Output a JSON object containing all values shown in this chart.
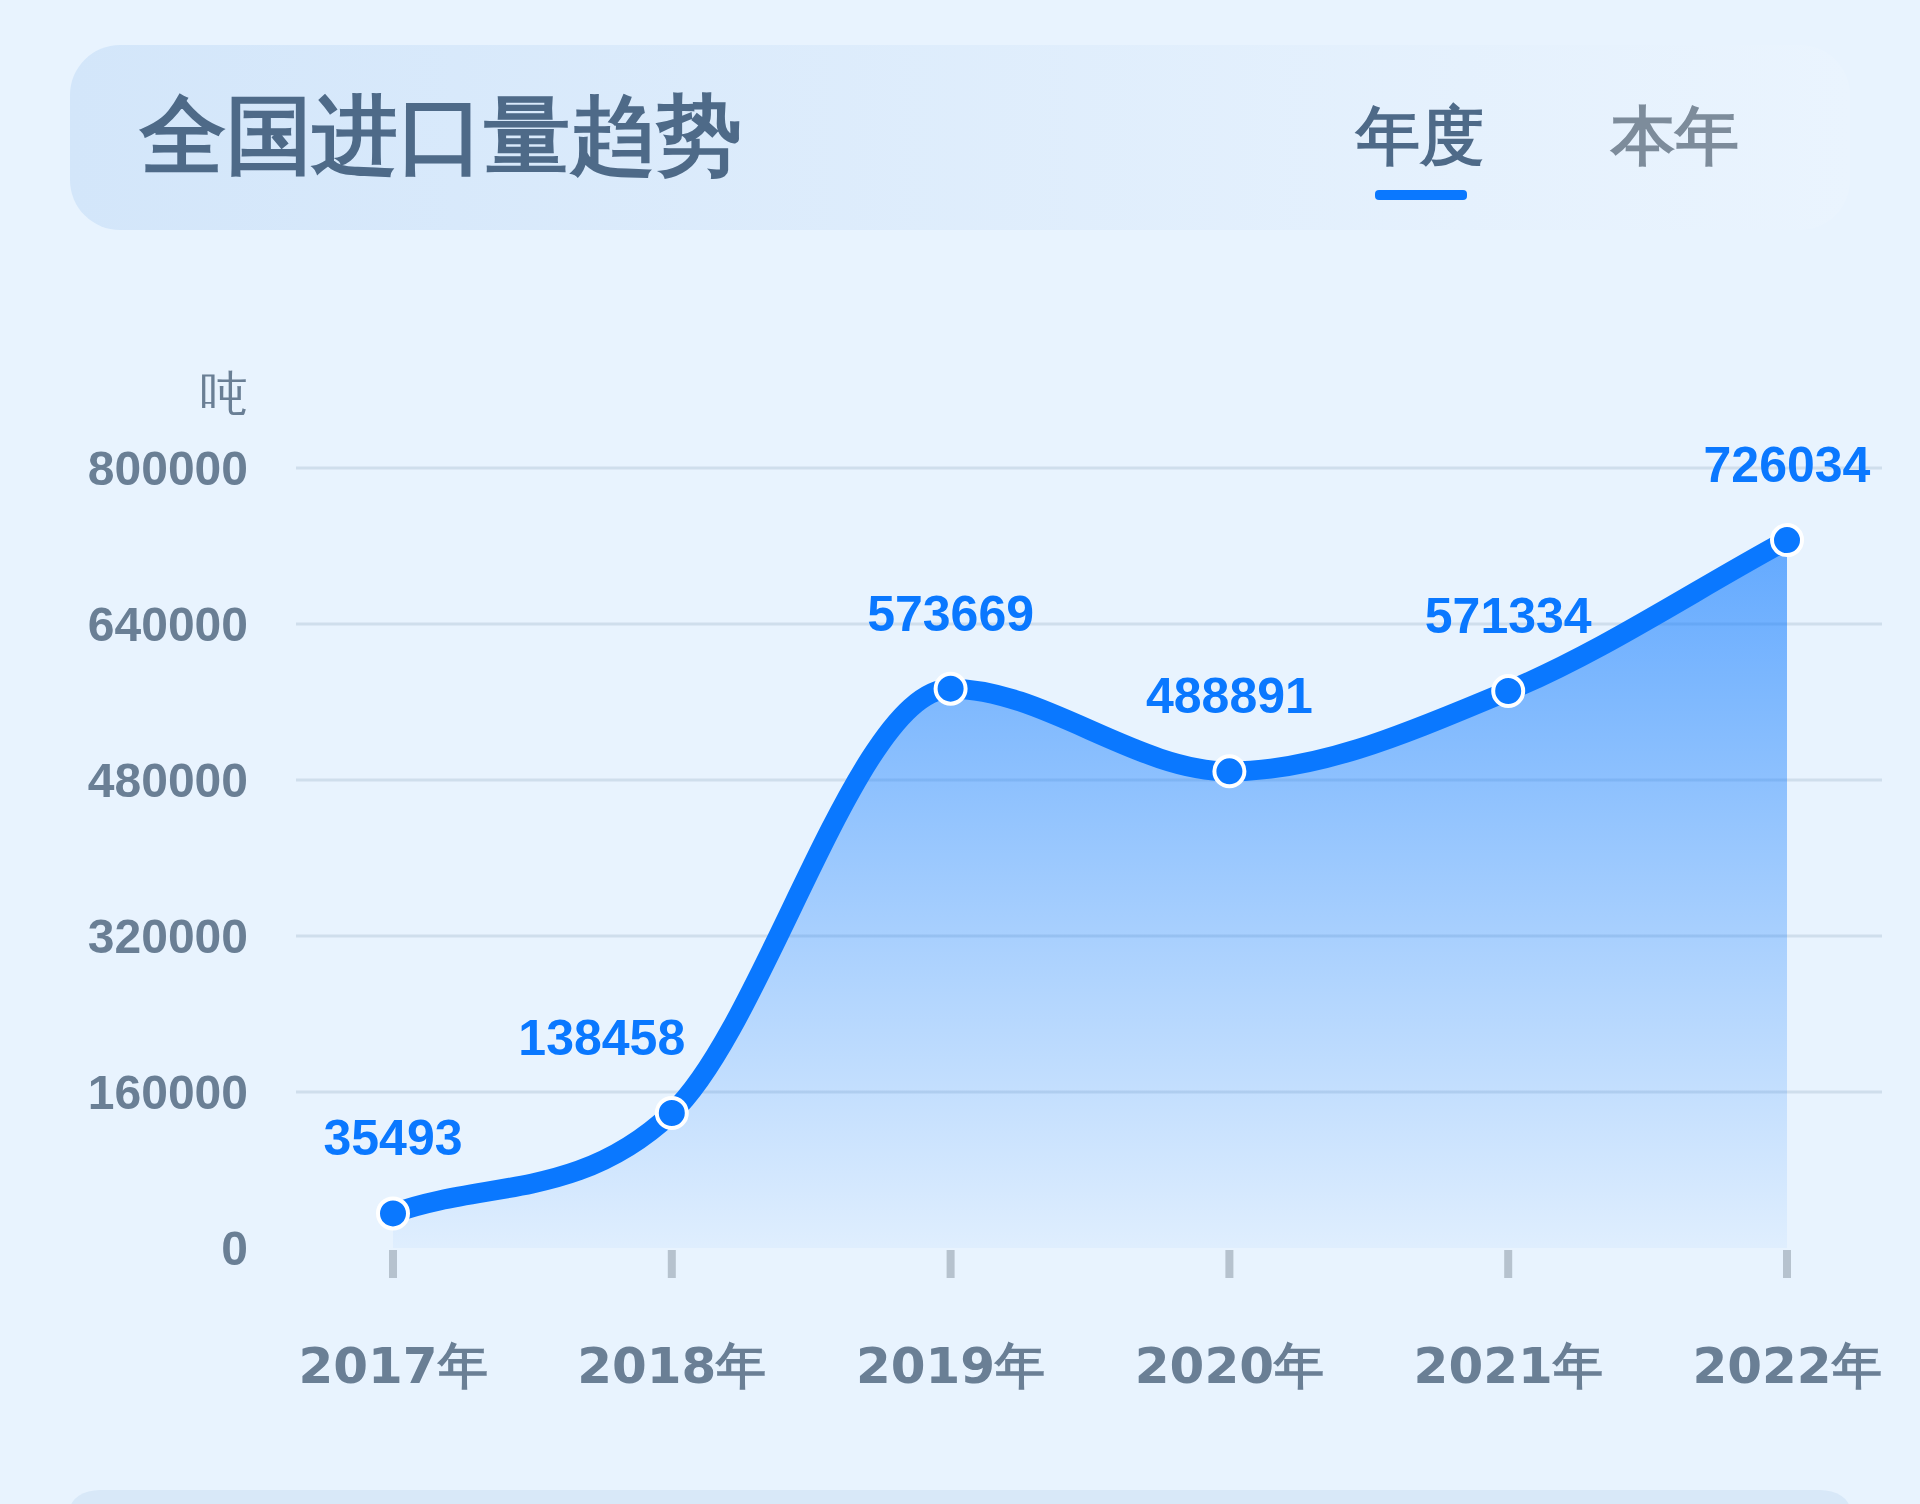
{
  "chart_data": {
    "type": "area",
    "title": "全国进口量趋势",
    "ylabel": "吨",
    "categories": [
      "2017年",
      "2018年",
      "2019年",
      "2020年",
      "2021年",
      "2022年"
    ],
    "series": [
      {
        "color": "#0a78ff",
        "values": [
          35493,
          138458,
          573669,
          488891,
          571334,
          726034
        ]
      }
    ],
    "ylim": [
      0,
      800000
    ],
    "yticks": [
      0,
      160000,
      320000,
      480000,
      640000,
      800000
    ],
    "grid": "y",
    "data_labels": true,
    "marker": "circle",
    "annotations": [
      "年度",
      "本年"
    ]
  }
}
